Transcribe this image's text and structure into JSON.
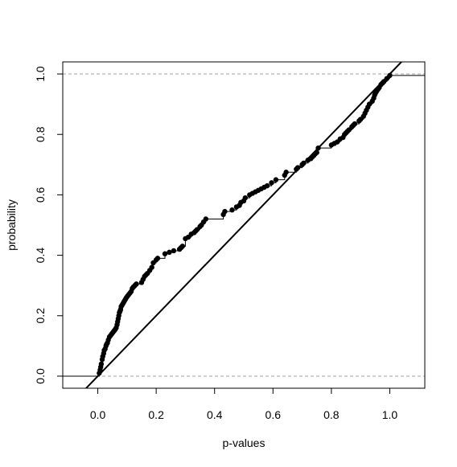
{
  "chart_data": {
    "type": "scatter",
    "title": "",
    "xlabel": "p-values",
    "ylabel": "probability",
    "xlim": [
      -0.12,
      1.12
    ],
    "ylim": [
      -0.04,
      1.04
    ],
    "x_ticks": [
      "0.0",
      "0.2",
      "0.4",
      "0.6",
      "0.8",
      "1.0"
    ],
    "x_tick_values": [
      0,
      0.2,
      0.4,
      0.6,
      0.8,
      1.0
    ],
    "y_ticks": [
      "0.0",
      "0.2",
      "0.4",
      "0.6",
      "0.8",
      "1.0"
    ],
    "y_tick_values": [
      0,
      0.2,
      0.4,
      0.6,
      0.8,
      1.0
    ],
    "grid": false,
    "reference_hlines": [
      0,
      1
    ],
    "reference_line": {
      "intercept": 0,
      "slope": 1
    },
    "series": [
      {
        "type": "ecdf-points",
        "x": [
          0.005,
          0.008,
          0.01,
          0.012,
          0.015,
          0.017,
          0.02,
          0.022,
          0.025,
          0.028,
          0.03,
          0.033,
          0.036,
          0.04,
          0.044,
          0.048,
          0.052,
          0.056,
          0.06,
          0.063,
          0.066,
          0.068,
          0.07,
          0.072,
          0.074,
          0.076,
          0.078,
          0.08,
          0.083,
          0.086,
          0.089,
          0.092,
          0.095,
          0.098,
          0.102,
          0.106,
          0.11,
          0.114,
          0.118,
          0.122,
          0.127,
          0.132,
          0.15,
          0.155,
          0.16,
          0.165,
          0.17,
          0.178,
          0.185,
          0.19,
          0.2,
          0.205,
          0.23,
          0.245,
          0.26,
          0.28,
          0.285,
          0.29,
          0.3,
          0.31,
          0.32,
          0.33,
          0.335,
          0.34,
          0.35,
          0.355,
          0.362,
          0.37,
          0.43,
          0.435,
          0.46,
          0.475,
          0.485,
          0.49,
          0.5,
          0.505,
          0.52,
          0.53,
          0.54,
          0.55,
          0.56,
          0.57,
          0.58,
          0.595,
          0.61,
          0.64,
          0.645,
          0.68,
          0.685,
          0.7,
          0.705,
          0.72,
          0.73,
          0.74,
          0.75,
          0.755,
          0.8,
          0.81,
          0.82,
          0.83,
          0.84,
          0.845,
          0.85,
          0.855,
          0.86,
          0.87,
          0.875,
          0.88,
          0.895,
          0.9,
          0.91,
          0.915,
          0.92,
          0.925,
          0.93,
          0.94,
          0.945,
          0.948,
          0.95,
          0.953,
          0.956,
          0.96,
          0.964,
          0.97,
          0.975,
          0.98,
          0.99,
          1.0
        ],
        "y": [
          0.01,
          0.02,
          0.03,
          0.04,
          0.055,
          0.065,
          0.075,
          0.085,
          0.09,
          0.1,
          0.105,
          0.11,
          0.12,
          0.13,
          0.135,
          0.14,
          0.145,
          0.15,
          0.155,
          0.16,
          0.17,
          0.18,
          0.19,
          0.2,
          0.21,
          0.215,
          0.22,
          0.23,
          0.235,
          0.24,
          0.245,
          0.25,
          0.255,
          0.26,
          0.265,
          0.27,
          0.275,
          0.28,
          0.29,
          0.295,
          0.3,
          0.305,
          0.31,
          0.32,
          0.33,
          0.335,
          0.34,
          0.35,
          0.36,
          0.375,
          0.385,
          0.39,
          0.405,
          0.41,
          0.415,
          0.42,
          0.425,
          0.43,
          0.455,
          0.46,
          0.47,
          0.475,
          0.48,
          0.485,
          0.495,
          0.5,
          0.51,
          0.52,
          0.535,
          0.545,
          0.55,
          0.56,
          0.565,
          0.575,
          0.58,
          0.59,
          0.6,
          0.605,
          0.61,
          0.615,
          0.62,
          0.625,
          0.63,
          0.64,
          0.65,
          0.665,
          0.675,
          0.685,
          0.69,
          0.7,
          0.705,
          0.715,
          0.72,
          0.73,
          0.74,
          0.755,
          0.765,
          0.77,
          0.775,
          0.785,
          0.79,
          0.8,
          0.805,
          0.81,
          0.815,
          0.825,
          0.83,
          0.835,
          0.845,
          0.85,
          0.86,
          0.87,
          0.88,
          0.89,
          0.9,
          0.91,
          0.92,
          0.93,
          0.935,
          0.94,
          0.945,
          0.95,
          0.955,
          0.965,
          0.97,
          0.975,
          0.985,
          0.995
        ]
      }
    ]
  }
}
